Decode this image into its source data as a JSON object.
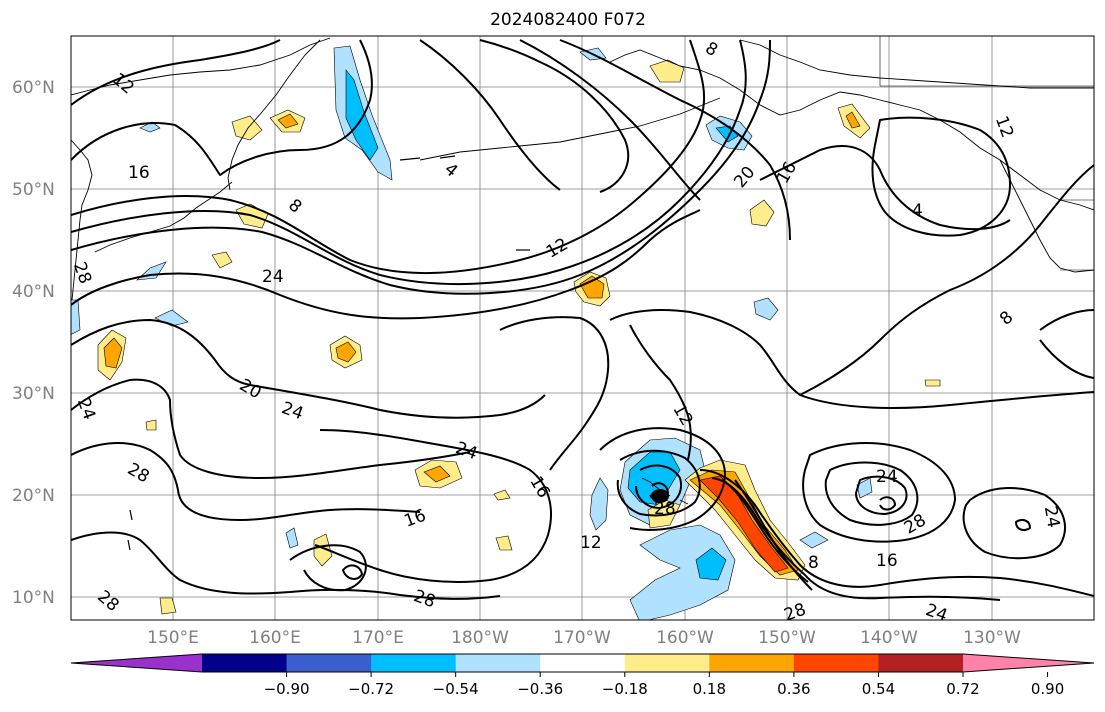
{
  "title": "2024082400 F072",
  "lat_ticks": [
    "60°N",
    "50°N",
    "40°N",
    "30°N",
    "20°N",
    "10°N"
  ],
  "lon_ticks": [
    "150°E",
    "160°E",
    "170°E",
    "180°W",
    "170°W",
    "160°W",
    "150°W",
    "140°W",
    "130°W"
  ],
  "colorbar": {
    "ticks": [
      "−0.90",
      "−0.72",
      "−0.54",
      "−0.36",
      "−0.18",
      "0.18",
      "0.36",
      "0.54",
      "0.72",
      "0.90"
    ],
    "colors": [
      "#9932CC",
      "#00008B",
      "#3A5FCD",
      "#00BFFF",
      "#B0E2FF",
      "#FFFFFF",
      "#FFEC8B",
      "#FFA500",
      "#FF4500",
      "#B22222",
      "#FF82AB"
    ]
  },
  "contour_labels": [
    "16",
    "8",
    "12",
    "12",
    "24",
    "4",
    "20",
    "16",
    "8",
    "8",
    "4",
    "12",
    "24",
    "20",
    "24",
    "24",
    "24",
    "28",
    "16",
    "16",
    "12",
    "28",
    "12",
    "8",
    "16",
    "24",
    "28",
    "28",
    "28",
    "24",
    "28",
    "28"
  ],
  "colors": {
    "contour": "#000000",
    "coast": "#000000",
    "grid": "#808080"
  }
}
